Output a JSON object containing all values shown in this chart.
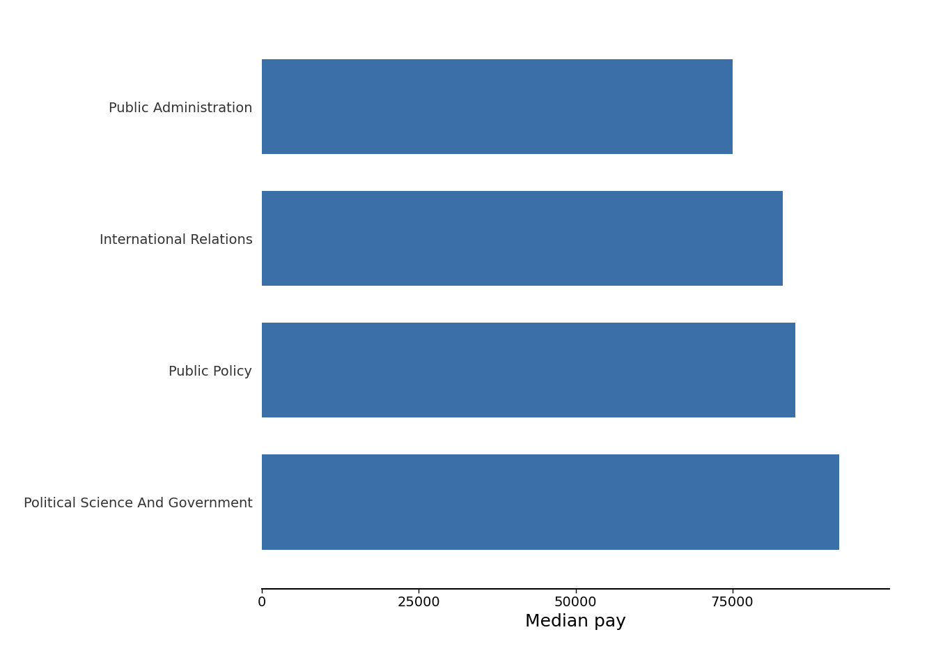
{
  "categories": [
    "Public Administration",
    "International Relations",
    "Public Policy",
    "Political Science And Government"
  ],
  "values": [
    75000,
    83000,
    85000,
    92000
  ],
  "bar_color": "#3A6FA8",
  "xlabel": "Median pay",
  "xlim": [
    0,
    100000
  ],
  "xticks": [
    0,
    25000,
    50000,
    75000
  ],
  "xtick_labels": [
    "0",
    "25000",
    "50000",
    "75000"
  ],
  "background_color": "#ffffff",
  "bar_height": 0.72,
  "xlabel_fontsize": 18,
  "tick_fontsize": 14,
  "ylabel_fontsize": 14
}
